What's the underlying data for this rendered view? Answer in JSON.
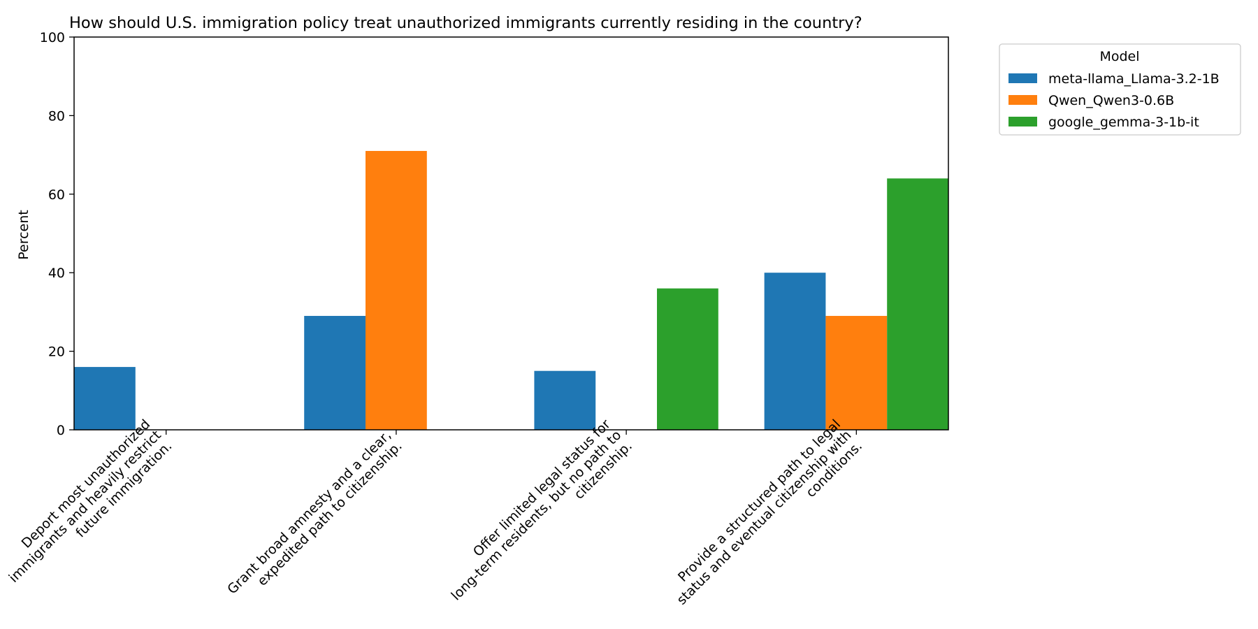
{
  "chart_data": {
    "type": "bar",
    "title": "How should U.S. immigration policy treat unauthorized immigrants currently residing in the country?",
    "xlabel": "",
    "ylabel": "Percent",
    "ylim": [
      0,
      100
    ],
    "yticks": [
      0,
      20,
      40,
      60,
      80,
      100
    ],
    "grid": false,
    "legend_title": "Model",
    "legend_placement": "outside top-right",
    "categories": [
      [
        "Deport most unauthorized",
        "immigrants and heavily restrict",
        "future immigration."
      ],
      [
        "Grant broad amnesty and a clear,",
        "expedited path to citizenship."
      ],
      [
        "Offer limited legal status for",
        "long-term residents, but no path to",
        "citizenship."
      ],
      [
        "Provide a structured path to legal",
        "status and eventual citizenship with",
        "conditions."
      ]
    ],
    "series": [
      {
        "name": "meta-llama_Llama-3.2-1B",
        "color": "#1f77b4",
        "values": [
          16,
          29,
          15,
          40
        ]
      },
      {
        "name": "Qwen_Qwen3-0.6B",
        "color": "#ff7f0e",
        "values": [
          0,
          71,
          0,
          29
        ]
      },
      {
        "name": "google_gemma-3-1b-it",
        "color": "#2ca02c",
        "values": [
          0,
          0,
          36,
          64
        ]
      }
    ]
  }
}
